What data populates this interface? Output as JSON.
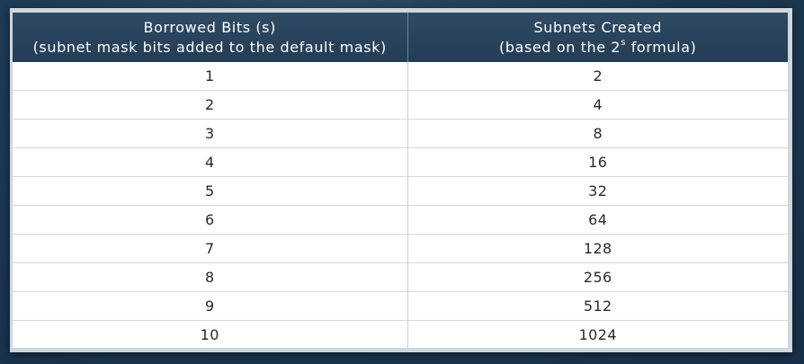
{
  "table": {
    "headers": [
      {
        "line1": "Borrowed Bits (s)",
        "line2": "(subnet mask bits added to the default mask)"
      },
      {
        "line1": "Subnets Created",
        "line2_prefix": "(based on the 2",
        "line2_sup": "s",
        "line2_suffix": " formula)"
      }
    ],
    "rows": [
      [
        "1",
        "2"
      ],
      [
        "2",
        "4"
      ],
      [
        "3",
        "8"
      ],
      [
        "4",
        "16"
      ],
      [
        "5",
        "32"
      ],
      [
        "6",
        "64"
      ],
      [
        "7",
        "128"
      ],
      [
        "8",
        "256"
      ],
      [
        "9",
        "512"
      ],
      [
        "10",
        "1024"
      ]
    ]
  },
  "colors": {
    "header_bg": "#2b4660",
    "page_bg": "#1e3a52",
    "row_border": "#d8d8d8"
  }
}
